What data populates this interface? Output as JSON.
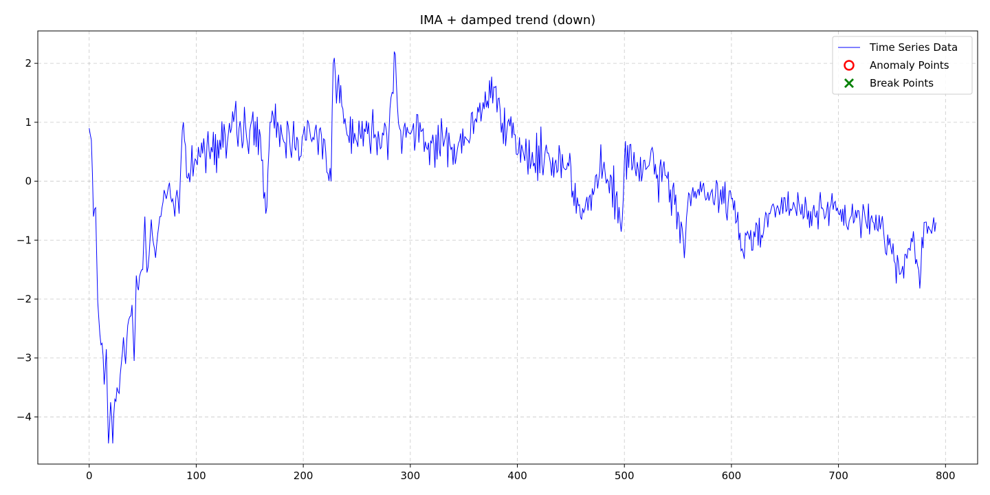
{
  "chart_data": {
    "type": "line",
    "title": "IMA + damped trend (down)",
    "xlabel": "",
    "ylabel": "",
    "xlim": [
      -48,
      830
    ],
    "ylim": [
      -4.8,
      2.55
    ],
    "x_ticks": [
      0,
      100,
      200,
      300,
      400,
      500,
      600,
      700,
      800
    ],
    "x_tick_labels": [
      "0",
      "100",
      "200",
      "300",
      "400",
      "500",
      "600",
      "700",
      "800"
    ],
    "y_ticks": [
      -4,
      -3,
      -2,
      -1,
      0,
      1,
      2
    ],
    "y_tick_labels": [
      "−4",
      "−3",
      "−2",
      "−1",
      "0",
      "1",
      "2"
    ],
    "grid": true,
    "legend_position": "top-right",
    "legend": [
      {
        "label": "Time Series Data",
        "marker": "line",
        "color": "#0000ff"
      },
      {
        "label": "Anomaly Points",
        "marker": "circle",
        "color": "#ff0000"
      },
      {
        "label": "Break Points",
        "marker": "x",
        "color": "#008000"
      }
    ],
    "series": [
      {
        "name": "Time Series Data",
        "color": "#0000ff",
        "x_start": 0,
        "x_step": 1,
        "n_points": 792,
        "anchor_x": [
          0,
          2,
          4,
          6,
          8,
          10,
          12,
          14,
          16,
          18,
          20,
          22,
          24,
          26,
          28,
          30,
          32,
          34,
          36,
          38,
          40,
          42,
          44,
          46,
          48,
          50,
          52,
          54,
          56,
          58,
          60,
          62,
          64,
          66,
          68,
          70,
          72,
          74,
          76,
          78,
          80,
          82,
          84,
          86,
          88,
          90,
          92,
          95,
          100,
          110,
          120,
          130,
          140,
          150,
          160,
          165,
          170,
          180,
          190,
          200,
          210,
          220,
          226,
          228,
          240,
          260,
          270,
          280,
          285,
          290,
          300,
          320,
          350,
          378,
          400,
          430,
          450,
          460,
          480,
          498,
          500,
          520,
          540,
          557,
          560,
          580,
          600,
          610,
          640,
          680,
          700,
          720,
          740,
          757,
          770,
          776,
          780,
          791
        ],
        "anchor_y": [
          0.9,
          0.7,
          -0.6,
          -0.45,
          -2.05,
          -2.6,
          -2.75,
          -3.45,
          -2.85,
          -4.45,
          -3.75,
          -4.45,
          -3.7,
          -3.5,
          -3.6,
          -3.1,
          -2.65,
          -3.1,
          -2.45,
          -2.3,
          -2.1,
          -3.05,
          -1.6,
          -1.85,
          -1.55,
          -1.5,
          -0.6,
          -1.55,
          -1.25,
          -0.65,
          -1.05,
          -1.3,
          -0.9,
          -0.6,
          -0.45,
          -0.15,
          -0.3,
          -0.1,
          -0.25,
          -0.3,
          -0.6,
          -0.15,
          -0.55,
          0.45,
          1.0,
          0.6,
          0.05,
          0.2,
          0.35,
          0.6,
          0.7,
          0.8,
          0.9,
          0.85,
          0.75,
          -0.55,
          1.0,
          0.8,
          0.7,
          0.8,
          0.7,
          0.7,
          0.0,
          2.0,
          0.9,
          0.8,
          0.85,
          0.8,
          2.2,
          0.9,
          0.8,
          0.65,
          0.6,
          1.6,
          0.45,
          0.4,
          0.25,
          -0.65,
          0.2,
          -0.65,
          0.35,
          0.2,
          0.05,
          -1.02,
          -0.2,
          -0.25,
          -0.3,
          -1.15,
          -0.45,
          -0.5,
          -0.55,
          -0.65,
          -0.7,
          -1.58,
          -0.85,
          -1.82,
          -0.7,
          -0.7
        ]
      }
    ]
  }
}
